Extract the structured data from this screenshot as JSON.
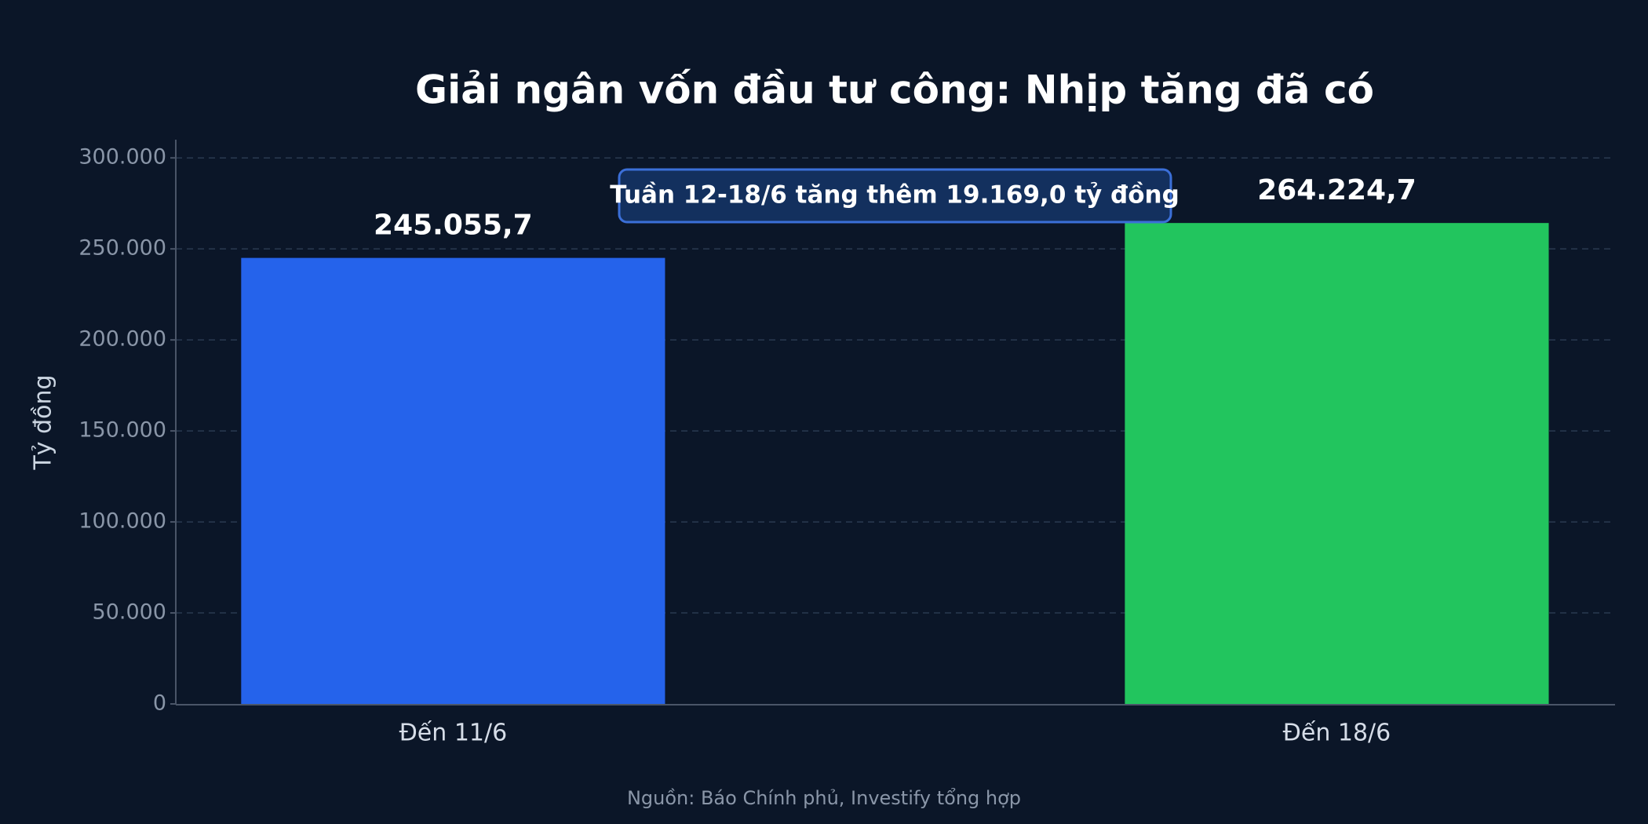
{
  "chart_data": {
    "type": "bar",
    "title": "Giải ngân vốn đầu tư công: Nhịp tăng đã có",
    "y_label": "Tỷ đồng",
    "categories": [
      "Đến 11/6",
      "Đến 18/6"
    ],
    "values": [
      245055.7,
      264224.7
    ],
    "value_labels": [
      "245.055,7",
      "264.224,7"
    ],
    "colors": [
      "#2563eb",
      "#22c55e"
    ],
    "ylim": [
      0,
      310000
    ],
    "yticks": [
      0,
      {
        "value": 50000,
        "label": "50.000"
      },
      {
        "value": 100000,
        "label": "100.000"
      },
      {
        "value": 150000,
        "label": "150.000"
      },
      {
        "value": 200000,
        "label": "200.000"
      },
      {
        "value": 250000,
        "label": "250.000"
      },
      {
        "value": 300000,
        "label": "300.000"
      }
    ],
    "grid": true,
    "annotation": "Tuần 12-18/6 tăng thêm 19.169,0 tỷ đồng",
    "source": "Nguồn: Báo Chính phủ, Investify tổng hợp"
  }
}
